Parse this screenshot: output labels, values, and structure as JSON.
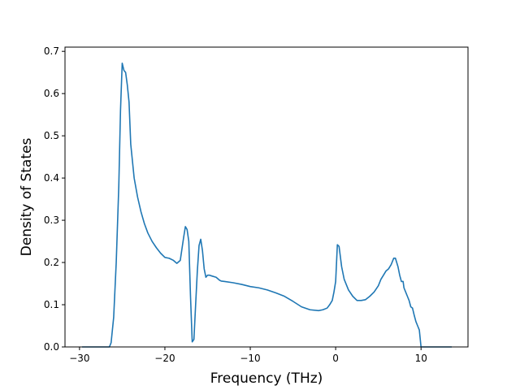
{
  "chart_data": {
    "type": "line",
    "title": "",
    "xlabel": "Frequency (THz)",
    "ylabel": "Density of States",
    "xlim": [
      -31.7,
      15.5
    ],
    "ylim": [
      0.0,
      0.71
    ],
    "xticks": [
      -30,
      -20,
      -10,
      0,
      10
    ],
    "xtick_labels": [
      "−30",
      "−20",
      "−10",
      "0",
      "10"
    ],
    "yticks": [
      0.0,
      0.1,
      0.2,
      0.3,
      0.4,
      0.5,
      0.6,
      0.7
    ],
    "ytick_labels": [
      "0.0",
      "0.1",
      "0.2",
      "0.3",
      "0.4",
      "0.5",
      "0.6",
      "0.7"
    ],
    "grid": false,
    "legend": "none",
    "series": [
      {
        "color": "#1f77b4",
        "x": [
          -29.7,
          -26.5,
          -26.3,
          -26.0,
          -25.7,
          -25.4,
          -25.2,
          -25.0,
          -24.8,
          -24.6,
          -24.4,
          -24.2,
          -24.0,
          -23.8,
          -23.6,
          -23.2,
          -22.8,
          -22.4,
          -22.0,
          -21.5,
          -21.0,
          -20.5,
          -20.0,
          -19.5,
          -19.0,
          -18.6,
          -18.2,
          -17.8,
          -17.6,
          -17.4,
          -17.2,
          -17.0,
          -16.8,
          -16.6,
          -16.4,
          -16.2,
          -16.0,
          -15.8,
          -15.6,
          -15.4,
          -15.2,
          -15.0,
          -14.8,
          -14.5,
          -14.0,
          -13.6,
          -13.4,
          -13.0,
          -12.0,
          -11.0,
          -10.0,
          -9.0,
          -8.0,
          -7.0,
          -6.0,
          -5.0,
          -4.0,
          -3.0,
          -2.0,
          -1.5,
          -1.0,
          -0.7,
          -0.4,
          -0.2,
          0.0,
          0.2,
          0.4,
          0.7,
          1.0,
          1.5,
          2.0,
          2.5,
          3.0,
          3.5,
          4.0,
          4.5,
          5.0,
          5.3,
          5.6,
          5.9,
          6.2,
          6.5,
          6.8,
          7.0,
          7.3,
          7.5,
          7.7,
          7.9,
          8.0,
          8.2,
          8.4,
          8.6,
          8.8,
          9.0,
          9.2,
          9.4,
          9.6,
          9.8,
          10.0,
          10.3,
          10.6,
          13.6
        ],
        "y": [
          0.0,
          0.0,
          0.01,
          0.07,
          0.2,
          0.38,
          0.56,
          0.672,
          0.655,
          0.65,
          0.62,
          0.58,
          0.48,
          0.44,
          0.4,
          0.355,
          0.32,
          0.292,
          0.27,
          0.25,
          0.235,
          0.222,
          0.212,
          0.21,
          0.205,
          0.198,
          0.205,
          0.26,
          0.285,
          0.278,
          0.25,
          0.12,
          0.012,
          0.018,
          0.1,
          0.18,
          0.24,
          0.255,
          0.228,
          0.185,
          0.165,
          0.17,
          0.17,
          0.168,
          0.165,
          0.158,
          0.156,
          0.155,
          0.152,
          0.148,
          0.143,
          0.14,
          0.135,
          0.128,
          0.12,
          0.108,
          0.095,
          0.088,
          0.086,
          0.088,
          0.092,
          0.1,
          0.11,
          0.13,
          0.155,
          0.242,
          0.238,
          0.19,
          0.16,
          0.135,
          0.12,
          0.11,
          0.11,
          0.112,
          0.12,
          0.13,
          0.145,
          0.16,
          0.17,
          0.18,
          0.185,
          0.195,
          0.21,
          0.21,
          0.19,
          0.17,
          0.155,
          0.155,
          0.14,
          0.13,
          0.12,
          0.11,
          0.095,
          0.092,
          0.075,
          0.06,
          0.05,
          0.04,
          0.0,
          0.0,
          0.0,
          0.0
        ]
      }
    ]
  }
}
